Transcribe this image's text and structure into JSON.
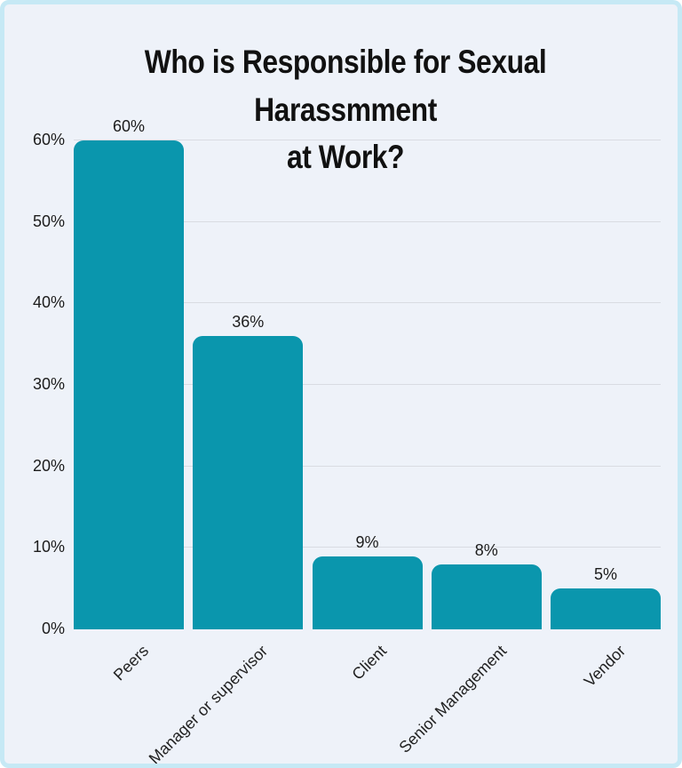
{
  "chart_data": {
    "type": "bar",
    "title": "Who is Responsible for Sexual Harassmment at Work?",
    "title_line1": "Who is Responsible for Sexual Harassmment",
    "title_line2": "at Work?",
    "categories": [
      "Peers",
      "Manager or supervisor",
      "Client",
      "Senior Management",
      "Vendor"
    ],
    "values": [
      60,
      36,
      9,
      8,
      5
    ],
    "value_labels": [
      "60%",
      "36%",
      "9%",
      "8%",
      "5%"
    ],
    "y_ticks": [
      "0%",
      "10%",
      "20%",
      "30%",
      "40%",
      "50%",
      "60%"
    ],
    "ylim": [
      0,
      60
    ],
    "xlabel": "",
    "ylabel": "",
    "grid": true,
    "legend": "none",
    "bar_color": "#0a96ad",
    "background_color": "#eef2f9",
    "border_color": "#c6e9f5",
    "gridline_color": "#d9dce2"
  }
}
